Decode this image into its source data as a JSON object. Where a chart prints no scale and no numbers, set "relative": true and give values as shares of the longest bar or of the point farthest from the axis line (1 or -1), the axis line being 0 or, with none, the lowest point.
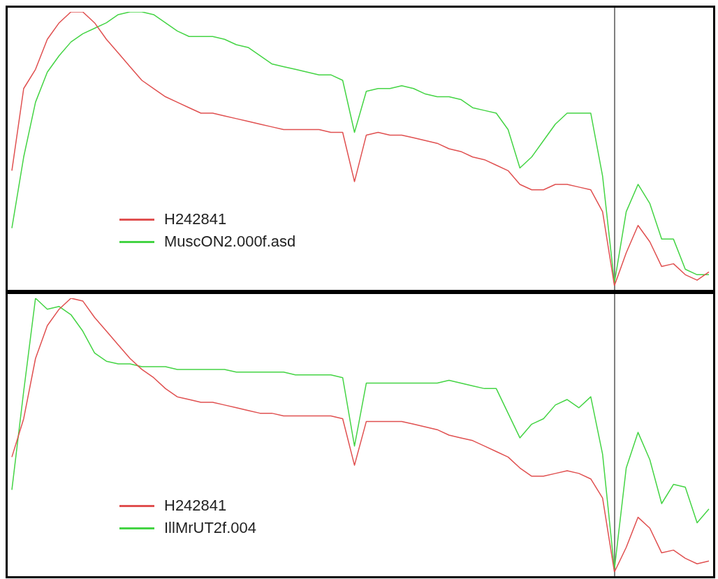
{
  "chart_data": [
    {
      "type": "line",
      "relative": true,
      "legend": "bottom left",
      "tick_labels": false,
      "grid": false,
      "marker": "none",
      "categories": [
        null,
        null,
        null,
        null,
        null,
        null,
        null,
        null,
        null,
        null,
        null,
        null,
        null,
        null,
        null,
        null,
        null,
        null,
        null,
        null,
        null,
        null,
        null,
        null,
        null,
        null,
        null,
        null,
        null,
        null,
        null,
        null,
        null,
        null,
        null,
        null,
        null,
        null,
        null,
        null,
        null,
        null,
        null,
        null,
        null,
        null,
        null,
        null,
        null,
        null,
        null,
        null,
        null,
        null,
        null,
        null,
        null,
        null,
        null,
        null
      ],
      "series": [
        {
          "name": "H242841",
          "color": "#e05050",
          "values": [
            0.42,
            0.72,
            0.79,
            0.9,
            0.96,
            1,
            1,
            0.96,
            0.9,
            0.85,
            0.8,
            0.75,
            0.72,
            0.69,
            0.67,
            0.65,
            0.63,
            0.63,
            0.62,
            0.61,
            0.6,
            0.59,
            0.58,
            0.57,
            0.57,
            0.57,
            0.57,
            0.56,
            0.56,
            0.38,
            0.55,
            0.56,
            0.55,
            0.55,
            0.54,
            0.53,
            0.52,
            0.5,
            0.49,
            0.47,
            0.46,
            0.44,
            0.42,
            0.37,
            0.35,
            0.35,
            0.37,
            0.37,
            0.36,
            0.35,
            0.27,
            0,
            0.12,
            0.22,
            0.16,
            0.07,
            0.08,
            0.04,
            0.02,
            0.05
          ]
        },
        {
          "name": "MuscON2.000f.asd",
          "color": "#44d444",
          "values": [
            0.21,
            0.47,
            0.67,
            0.78,
            0.84,
            0.89,
            0.92,
            0.94,
            0.96,
            0.99,
            1,
            1,
            0.99,
            0.96,
            0.93,
            0.91,
            0.91,
            0.91,
            0.9,
            0.88,
            0.87,
            0.84,
            0.81,
            0.8,
            0.79,
            0.78,
            0.77,
            0.77,
            0.75,
            0.56,
            0.71,
            0.72,
            0.72,
            0.73,
            0.72,
            0.7,
            0.69,
            0.69,
            0.68,
            0.65,
            0.64,
            0.63,
            0.57,
            0.43,
            0.47,
            0.53,
            0.59,
            0.63,
            0.63,
            0.63,
            0.4,
            0.01,
            0.27,
            0.37,
            0.3,
            0.17,
            0.17,
            0.06,
            0.04,
            0.04
          ]
        }
      ]
    },
    {
      "type": "line",
      "relative": true,
      "legend": "bottom left",
      "tick_labels": false,
      "grid": false,
      "marker": "none",
      "categories": [
        null,
        null,
        null,
        null,
        null,
        null,
        null,
        null,
        null,
        null,
        null,
        null,
        null,
        null,
        null,
        null,
        null,
        null,
        null,
        null,
        null,
        null,
        null,
        null,
        null,
        null,
        null,
        null,
        null,
        null,
        null,
        null,
        null,
        null,
        null,
        null,
        null,
        null,
        null,
        null,
        null,
        null,
        null,
        null,
        null,
        null,
        null,
        null,
        null,
        null,
        null,
        null,
        null,
        null,
        null,
        null,
        null,
        null,
        null,
        null
      ],
      "series": [
        {
          "name": "H242841",
          "color": "#e05050",
          "values": [
            0.42,
            0.56,
            0.78,
            0.9,
            0.96,
            1,
            0.99,
            0.93,
            0.88,
            0.83,
            0.78,
            0.74,
            0.71,
            0.67,
            0.64,
            0.63,
            0.62,
            0.62,
            0.61,
            0.6,
            0.59,
            0.58,
            0.58,
            0.57,
            0.57,
            0.57,
            0.57,
            0.57,
            0.56,
            0.39,
            0.55,
            0.55,
            0.55,
            0.55,
            0.54,
            0.53,
            0.52,
            0.5,
            0.49,
            0.48,
            0.46,
            0.44,
            0.42,
            0.38,
            0.35,
            0.35,
            0.36,
            0.37,
            0.36,
            0.34,
            0.27,
            0,
            0.09,
            0.2,
            0.16,
            0.07,
            0.08,
            0.05,
            0.03,
            0.04
          ]
        },
        {
          "name": "IllMrUT2f.004",
          "color": "#44d444",
          "values": [
            0.3,
            0.66,
            1,
            0.96,
            0.97,
            0.94,
            0.88,
            0.8,
            0.77,
            0.76,
            0.76,
            0.75,
            0.75,
            0.75,
            0.74,
            0.74,
            0.74,
            0.74,
            0.74,
            0.73,
            0.73,
            0.73,
            0.73,
            0.73,
            0.72,
            0.72,
            0.72,
            0.72,
            0.71,
            0.46,
            0.69,
            0.69,
            0.69,
            0.69,
            0.69,
            0.69,
            0.69,
            0.7,
            0.69,
            0.68,
            0.67,
            0.67,
            0.58,
            0.49,
            0.54,
            0.56,
            0.61,
            0.63,
            0.6,
            0.64,
            0.43,
            0.01,
            0.38,
            0.51,
            0.41,
            0.25,
            0.32,
            0.31,
            0.18,
            0.23
          ]
        }
      ]
    }
  ]
}
